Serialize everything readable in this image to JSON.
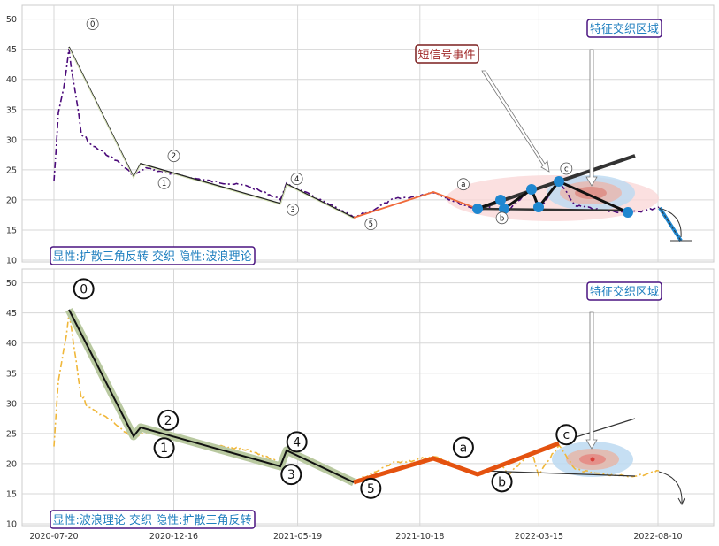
{
  "chart_data": [
    {
      "type": "line",
      "ylim": [
        10,
        52
      ],
      "yticks": [
        10,
        15,
        20,
        25,
        30,
        35,
        40,
        45,
        50
      ],
      "xticks": [
        "2020-07-20",
        "2020-12-16",
        "2021-05-19",
        "2021-10-18",
        "2022-03-15",
        "2022-08-10"
      ],
      "grid": true,
      "legend_box": "显性:扩散三角反转 交织 隐性:波浪理论",
      "annotations": {
        "short_signal": "短信号事件",
        "feature_zone": "特征交织区域"
      },
      "wave_labels": [
        {
          "label": "0",
          "date": "2020-09-06",
          "value": 49.2
        },
        {
          "label": "1",
          "date": "2020-12-04",
          "value": 22.8
        },
        {
          "label": "2",
          "date": "2020-12-16",
          "value": 27.3
        },
        {
          "label": "3",
          "date": "2021-05-13",
          "value": 18.4
        },
        {
          "label": "4",
          "date": "2021-05-18",
          "value": 23.5
        },
        {
          "label": "5",
          "date": "2021-08-18",
          "value": 16.0
        },
        {
          "label": "a",
          "date": "2021-12-11",
          "value": 22.6
        },
        {
          "label": "b",
          "date": "2022-01-28",
          "value": 17.0
        },
        {
          "label": "c",
          "date": "2022-04-18",
          "value": 25.2
        }
      ],
      "wave_path": [
        [
          "2020-08-23",
          45.6
        ],
        [
          "2020-12-09",
          24.0
        ],
        [
          "2020-12-16",
          26.0
        ],
        [
          "2021-05-13",
          19.5
        ],
        [
          "2021-05-20",
          22.5
        ],
        [
          "2021-08-18",
          17.2
        ],
        [
          "2021-12-11",
          21.0
        ],
        [
          "2022-01-28",
          18.5
        ],
        [
          "2022-04-18",
          23.0
        ]
      ],
      "triangle_points": [
        [
          "2022-01-20",
          18.5
        ],
        [
          "2022-02-01",
          20.5
        ],
        [
          "2022-02-05",
          18.7
        ],
        [
          "2022-03-12",
          22.0
        ],
        [
          "2022-03-18",
          19.1
        ],
        [
          "2022-04-05",
          23.5
        ],
        [
          "2022-07-10",
          18.2
        ]
      ]
    },
    {
      "type": "line",
      "ylim": [
        10,
        52
      ],
      "yticks": [
        10,
        15,
        20,
        25,
        30,
        35,
        40,
        45,
        50
      ],
      "xticks": [
        "2020-07-20",
        "2020-12-16",
        "2021-05-19",
        "2021-10-18",
        "2022-03-15",
        "2022-08-10"
      ],
      "grid": true,
      "legend_box": "显性:波浪理论 交织 隐性:扩散三角反转",
      "annotations": {
        "feature_zone": "特征交织区域"
      },
      "wave_labels": [
        {
          "label": "0",
          "date": "2020-08-26",
          "value": 49.0
        },
        {
          "label": "1",
          "date": "2020-12-04",
          "value": 22.6
        },
        {
          "label": "2",
          "date": "2020-12-09",
          "value": 27.2
        },
        {
          "label": "3",
          "date": "2021-05-11",
          "value": 18.2
        },
        {
          "label": "4",
          "date": "2021-05-18",
          "value": 23.6
        },
        {
          "label": "5",
          "date": "2021-08-18",
          "value": 15.9
        },
        {
          "label": "a",
          "date": "2021-12-11",
          "value": 22.7
        },
        {
          "label": "b",
          "date": "2022-01-28",
          "value": 17.0
        },
        {
          "label": "c",
          "date": "2022-04-18",
          "value": 24.8
        }
      ],
      "wave_path": [
        [
          "2020-08-23",
          45.6
        ],
        [
          "2020-12-04",
          24.0
        ],
        [
          "2020-12-09",
          26.2
        ],
        [
          "2021-05-11",
          19.5
        ],
        [
          "2021-05-18",
          22.5
        ],
        [
          "2021-08-18",
          17.0
        ],
        [
          "2021-12-11",
          21.0
        ],
        [
          "2022-01-28",
          18.6
        ],
        [
          "2022-04-18",
          23.0
        ]
      ]
    }
  ]
}
